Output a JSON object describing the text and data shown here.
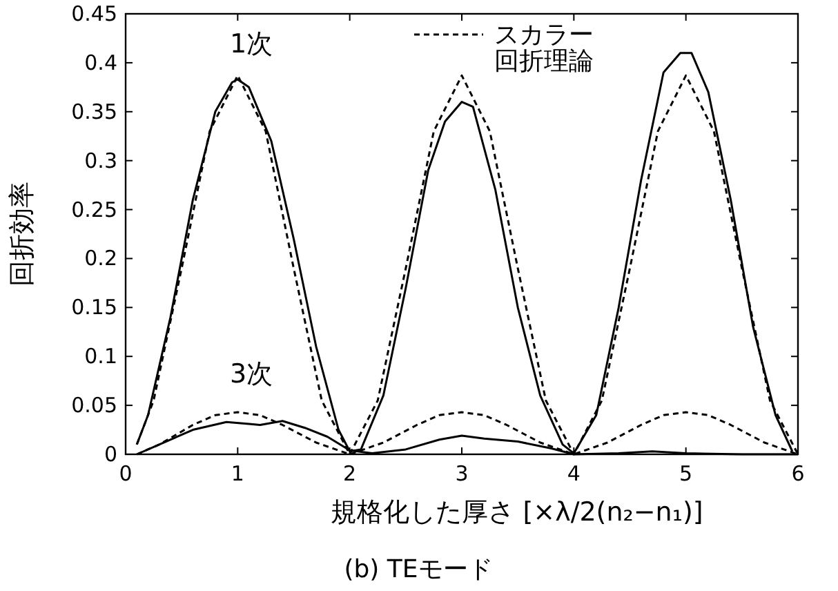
{
  "chart_data": {
    "type": "line",
    "xlabel": "規格化した厚さ [×λ/2(n₂−n₁)]",
    "ylabel": "回折効率",
    "xlim": [
      0,
      6
    ],
    "ylim": [
      0,
      0.45
    ],
    "xticks": [
      0,
      1,
      2,
      3,
      4,
      5,
      6
    ],
    "yticks": [
      0,
      0.05,
      0.1,
      0.15,
      0.2,
      0.25,
      0.3,
      0.35,
      0.4,
      0.45
    ],
    "grid": false,
    "legend": "top right",
    "annotations": [
      "1次",
      "3次",
      "(b) TEモード"
    ],
    "series": [
      {
        "color": "#000000",
        "line_style": "solid",
        "x": [
          0.1,
          0.2,
          0.4,
          0.6,
          0.8,
          0.95,
          1.0,
          1.1,
          1.3,
          1.5,
          1.7,
          1.9,
          2.0,
          2.1,
          2.3,
          2.5,
          2.7,
          2.85,
          3.0,
          3.1,
          3.3,
          3.5,
          3.7,
          3.9,
          4.0,
          4.2,
          4.4,
          4.6,
          4.8,
          4.95,
          5.05,
          5.2,
          5.4,
          5.6,
          5.8,
          5.95
        ],
        "values": [
          0.01,
          0.04,
          0.14,
          0.26,
          0.35,
          0.38,
          0.383,
          0.375,
          0.32,
          0.22,
          0.11,
          0.025,
          0.003,
          0.005,
          0.06,
          0.17,
          0.29,
          0.34,
          0.36,
          0.355,
          0.27,
          0.15,
          0.06,
          0.01,
          0.001,
          0.04,
          0.15,
          0.28,
          0.39,
          0.41,
          0.41,
          0.37,
          0.26,
          0.13,
          0.04,
          0.003
        ]
      },
      {
        "name": "スカラー回折理論",
        "color": "#000000",
        "line_style": "dashed",
        "x": [
          0.1,
          0.25,
          0.5,
          0.75,
          1.0,
          1.25,
          1.5,
          1.75,
          2.0,
          2.25,
          2.5,
          2.75,
          3.0,
          3.25,
          3.5,
          3.75,
          4.0,
          4.25,
          4.5,
          4.75,
          5.0,
          5.25,
          5.5,
          5.75,
          6.0
        ],
        "values": [
          0.01,
          0.055,
          0.19,
          0.33,
          0.387,
          0.33,
          0.19,
          0.055,
          0.0,
          0.055,
          0.19,
          0.33,
          0.387,
          0.33,
          0.19,
          0.055,
          0.0,
          0.055,
          0.19,
          0.33,
          0.387,
          0.33,
          0.19,
          0.055,
          0.0
        ]
      },
      {
        "color": "#000000",
        "line_style": "solid",
        "x": [
          0.1,
          0.3,
          0.6,
          0.9,
          1.1,
          1.2,
          1.4,
          1.6,
          1.8,
          2.0,
          2.2,
          2.5,
          2.8,
          3.0,
          3.2,
          3.5,
          3.8,
          4.0,
          4.4,
          4.7,
          5.0,
          5.5,
          6.0
        ],
        "values": [
          0.0,
          0.01,
          0.025,
          0.033,
          0.031,
          0.03,
          0.034,
          0.027,
          0.018,
          0.004,
          0.001,
          0.005,
          0.015,
          0.019,
          0.016,
          0.013,
          0.006,
          0.0,
          0.001,
          0.003,
          0.001,
          0.0,
          0.0
        ]
      },
      {
        "color": "#000000",
        "line_style": "dashed",
        "x": [
          0.1,
          0.3,
          0.6,
          0.8,
          1.0,
          1.2,
          1.4,
          1.7,
          2.0,
          2.3,
          2.6,
          2.8,
          3.0,
          3.2,
          3.4,
          3.7,
          4.0,
          4.3,
          4.6,
          4.8,
          5.0,
          5.2,
          5.4,
          5.7,
          6.0
        ],
        "values": [
          0.0,
          0.01,
          0.03,
          0.04,
          0.043,
          0.04,
          0.03,
          0.012,
          0.0,
          0.012,
          0.03,
          0.04,
          0.043,
          0.04,
          0.03,
          0.012,
          0.0,
          0.012,
          0.03,
          0.04,
          0.043,
          0.04,
          0.03,
          0.012,
          0.0
        ]
      }
    ]
  }
}
